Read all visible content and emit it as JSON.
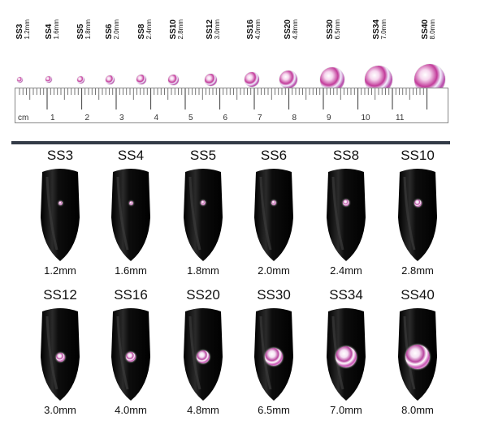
{
  "ruler": {
    "unit_label": "cm",
    "numbers": [
      "1",
      "2",
      "3",
      "4",
      "5",
      "6",
      "7",
      "8",
      "9",
      "10",
      "11"
    ]
  },
  "sizes": [
    {
      "name": "SS3",
      "mm": "1.2mm"
    },
    {
      "name": "SS4",
      "mm": "1.6mm"
    },
    {
      "name": "SS5",
      "mm": "1.8mm"
    },
    {
      "name": "SS6",
      "mm": "2.0mm"
    },
    {
      "name": "SS8",
      "mm": "2.4mm"
    },
    {
      "name": "SS10",
      "mm": "2.8mm"
    },
    {
      "name": "SS12",
      "mm": "3.0mm"
    },
    {
      "name": "SS16",
      "mm": "4.0mm"
    },
    {
      "name": "SS20",
      "mm": "4.8mm"
    },
    {
      "name": "SS30",
      "mm": "6.5mm"
    },
    {
      "name": "SS34",
      "mm": "7.0mm"
    },
    {
      "name": "SS40",
      "mm": "8.0mm"
    }
  ],
  "colors": {
    "nail": "#0b0b0b",
    "divider": "#333b47",
    "stone_accent": "#c23b9a"
  }
}
